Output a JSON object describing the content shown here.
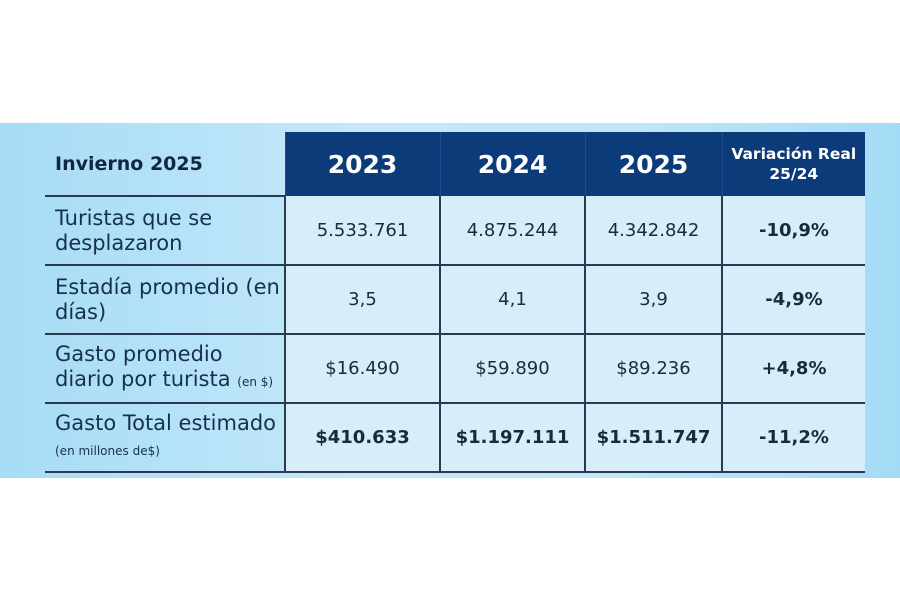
{
  "chart_data": {
    "type": "table",
    "title": "Invierno 2025",
    "columns": [
      "2023",
      "2024",
      "2025",
      "Variación Real 25/24"
    ],
    "colors": {
      "header": "#0c3b7a",
      "background": "#b8e3f8",
      "cell": "#d6edfa"
    },
    "rows": [
      {
        "label": "Turistas que se desplazaron",
        "unit": "",
        "values": [
          "5.533.761",
          "4.875.244",
          "4.342.842"
        ],
        "variation": "-10,9%",
        "bold_values": false
      },
      {
        "label": "Estadía promedio (en días)",
        "unit": "",
        "values": [
          "3,5",
          "4,1",
          "3,9"
        ],
        "variation": "-4,9%",
        "bold_values": false
      },
      {
        "label": "Gasto promedio diario por turista",
        "unit": "(en $)",
        "values": [
          "$16.490",
          "$59.890",
          "$89.236"
        ],
        "variation": "+4,8%",
        "bold_values": false
      },
      {
        "label": "Gasto Total estimado",
        "unit": "(en millones de$)",
        "values": [
          "$410.633",
          "$1.197.111",
          "$1.511.747"
        ],
        "variation": "-11,2%",
        "bold_values": true
      }
    ]
  }
}
